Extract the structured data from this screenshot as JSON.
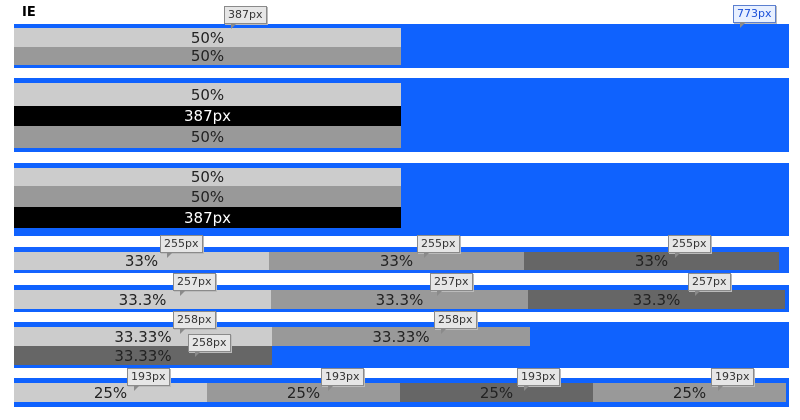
{
  "title": "IE",
  "full_width_label": "773px",
  "half_width_label": "387px",
  "row1": {
    "a": "50%",
    "b": "50%"
  },
  "row2": {
    "a": "50%",
    "b": "387px",
    "c": "50%"
  },
  "row3": {
    "a": "50%",
    "b": "50%",
    "c": "387px"
  },
  "row4": {
    "cells": [
      "33%",
      "33%",
      "33%"
    ],
    "tips": [
      "255px",
      "255px",
      "255px"
    ]
  },
  "row5": {
    "cells": [
      "33.3%",
      "33.3%",
      "33.3%"
    ],
    "tips": [
      "257px",
      "257px",
      "257px"
    ]
  },
  "row6": {
    "cells": [
      "33.33%",
      "33.33%",
      "33.33%"
    ],
    "tips": [
      "258px",
      "258px",
      "258px"
    ]
  },
  "row7": {
    "cells": [
      "25%",
      "25%",
      "25%",
      "25%"
    ],
    "tips": [
      "193px",
      "193px",
      "193px",
      "193px"
    ]
  }
}
